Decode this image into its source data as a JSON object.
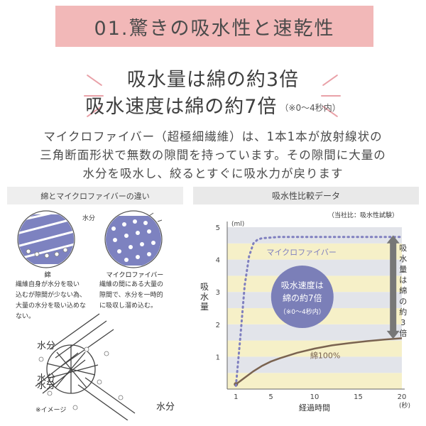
{
  "header": {
    "title": "01.驚きの吸水性と速乾性"
  },
  "headline": {
    "line1": "吸水量は綿の約3倍",
    "line2": "吸水速度は綿の約7倍",
    "line2_note": "（※0〜4秒内）"
  },
  "body": {
    "lines": [
      "マイクロファイバー（超極細繊維）は、1本1本が放射線状の",
      "三角断面形状で無数の隙間を持っています。その隙間に大量の",
      "水分を吸水し、絞るとすぐに吸水力が戻ります"
    ]
  },
  "left_panel": {
    "title": "綿とマイクロファイバーの違い",
    "water_label": "水分",
    "cotton": {
      "title": "綿",
      "desc": [
        "繊維自身が水分を吸い",
        "込むが隙間が少ない為、",
        "大量の水分を吸い込めな",
        "ない。"
      ]
    },
    "micro": {
      "title": "マイクロファイバー",
      "desc": [
        "繊維の間にある大量の",
        "隙間で、水分を一時的",
        "に吸収し溜め込む。"
      ]
    },
    "labels": [
      "水分",
      "水分",
      "水分",
      "水分"
    ],
    "image_note": "※イメージ"
  },
  "right_panel": {
    "title": "吸水性比較データ",
    "source": "（当社比：吸水性試験）"
  },
  "colors": {
    "header_bg": "#f2b8b8",
    "accent_pink": "#e9a1a8",
    "micro_line": "#7f7fbf",
    "cotton_line": "#7a6350",
    "band_yellow": "#f6f0c8",
    "band_gray": "#e2e4ea",
    "bubble": "#7b7fb8"
  },
  "chart_data": {
    "type": "line",
    "title": "吸水性比較データ",
    "ylabel": "吸水量",
    "yunit": "(ml)",
    "xlabel": "経過時間",
    "xunit": "(秒)",
    "xlim": [
      0,
      20
    ],
    "ylim": [
      0,
      5
    ],
    "xticks": [
      1,
      5,
      10,
      15,
      20
    ],
    "yticks": [
      1,
      2,
      3,
      4,
      5
    ],
    "series": [
      {
        "name": "マイクロファイバー",
        "x": [
          1,
          1.5,
          2,
          2.5,
          3,
          3.5,
          4,
          5,
          6,
          8,
          10,
          12,
          15,
          18,
          20
        ],
        "y": [
          0.1,
          1.6,
          3.2,
          4.1,
          4.5,
          4.62,
          4.66,
          4.68,
          4.7,
          4.7,
          4.7,
          4.7,
          4.7,
          4.7,
          4.7
        ]
      },
      {
        "name": "綿100%",
        "x": [
          1,
          2,
          3,
          4,
          5,
          6,
          8,
          10,
          12,
          14,
          16,
          18,
          20
        ],
        "y": [
          0.15,
          0.35,
          0.55,
          0.72,
          0.85,
          0.95,
          1.12,
          1.25,
          1.35,
          1.42,
          1.48,
          1.53,
          1.57
        ]
      }
    ],
    "bubble": {
      "lines": [
        "吸水速度は",
        "綿の約7倍",
        "（※0〜4秒内）"
      ]
    },
    "arrow_label": "吸水量は綿の約3倍"
  }
}
